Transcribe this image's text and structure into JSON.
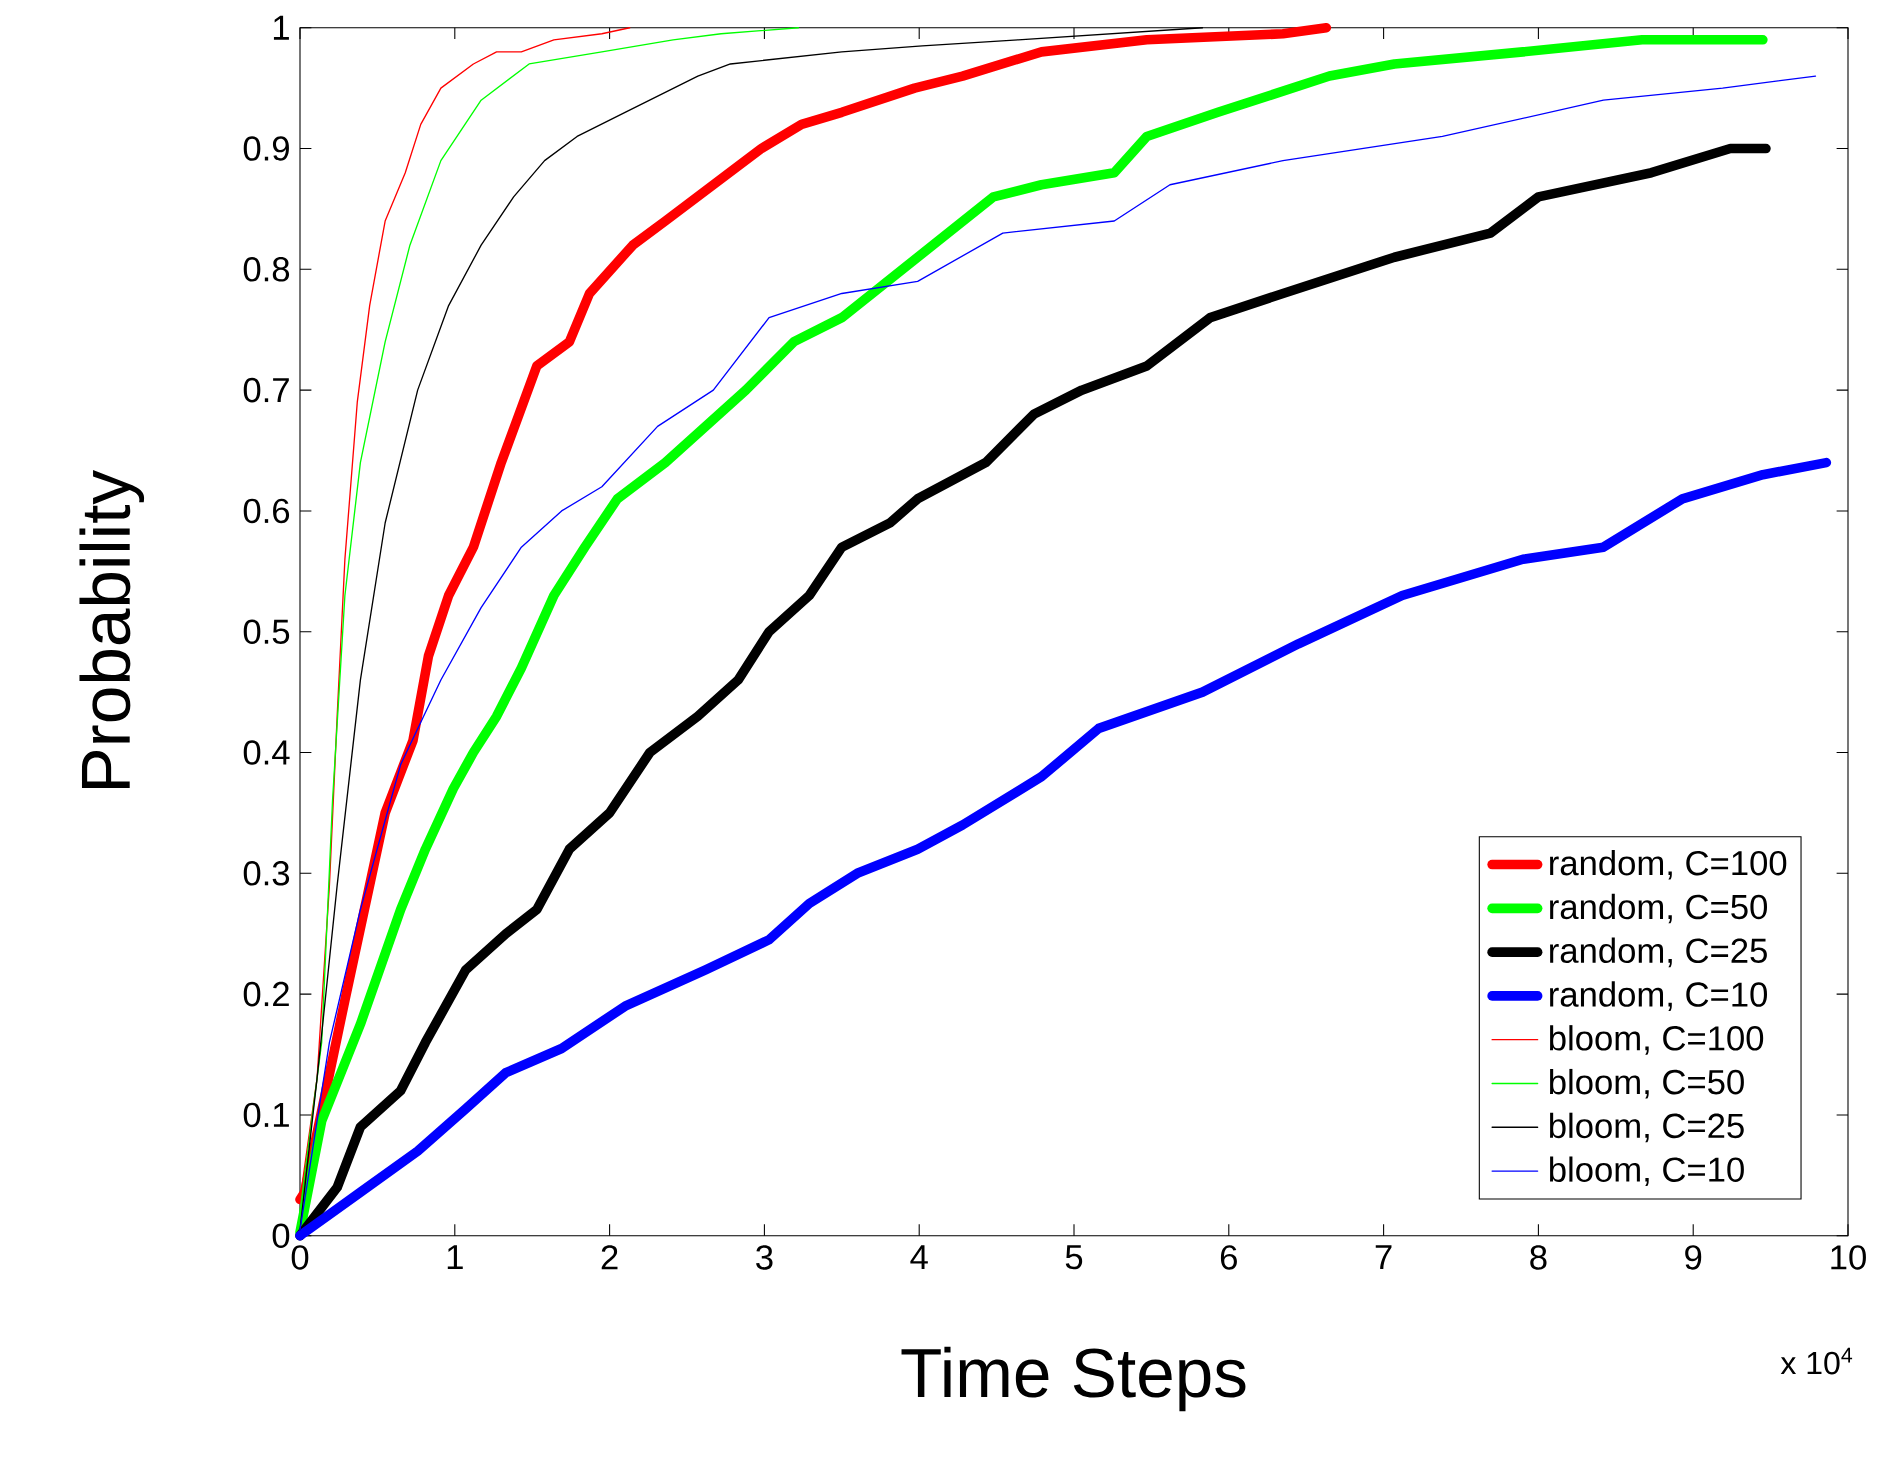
{
  "chart_data": {
    "type": "line",
    "xlabel": "Time Steps",
    "ylabel": "Probability",
    "annotations": [
      "x 10$^{4}$"
    ],
    "xlim": [
      0,
      10
    ],
    "ylim": [
      0,
      1
    ],
    "xticks": [
      0,
      1,
      2,
      3,
      4,
      5,
      6,
      7,
      8,
      9,
      10
    ],
    "yticks": [
      0,
      0.1,
      0.2,
      0.3,
      0.4,
      0.5,
      0.6,
      0.7,
      0.8,
      0.9,
      1
    ],
    "legend": "bottom right",
    "grid": false,
    "marker": "none",
    "line_style": "solid",
    "series": [
      {
        "name": "random, C=100",
        "color": "#ff0000",
        "x": [
          0,
          0.03,
          0.29,
          0.55,
          0.73,
          0.83,
          0.96,
          1.12,
          1.3,
          1.53,
          1.74,
          1.87,
          2.15,
          2.36,
          2.67,
          2.98,
          3.24,
          3.5,
          3.97,
          4.28,
          4.79,
          5.47,
          6.35,
          6.63
        ],
        "values": [
          0.03,
          0.036,
          0.195,
          0.35,
          0.41,
          0.48,
          0.53,
          0.57,
          0.64,
          0.72,
          0.74,
          0.78,
          0.82,
          0.84,
          0.87,
          0.9,
          0.92,
          0.93,
          0.95,
          0.96,
          0.98,
          0.99,
          0.995,
          1.0
        ]
      },
      {
        "name": "random, C=50",
        "color": "#00ff00",
        "x": [
          0,
          0.14,
          0.39,
          0.65,
          0.81,
          0.99,
          1.12,
          1.27,
          1.43,
          1.64,
          1.84,
          2.05,
          2.36,
          2.62,
          2.88,
          3.19,
          3.5,
          3.99,
          4.48,
          4.79,
          5.26,
          5.47,
          5.93,
          6.65,
          7.07,
          7.9,
          8.67,
          9.19,
          9.45
        ],
        "values": [
          0.003,
          0.095,
          0.175,
          0.27,
          0.32,
          0.37,
          0.4,
          0.43,
          0.47,
          0.53,
          0.57,
          0.61,
          0.64,
          0.67,
          0.7,
          0.74,
          0.76,
          0.81,
          0.86,
          0.87,
          0.88,
          0.91,
          0.93,
          0.96,
          0.97,
          0.98,
          0.99,
          0.99,
          0.99
        ]
      },
      {
        "name": "random, C=25",
        "color": "#000000",
        "x": [
          0,
          0.24,
          0.39,
          0.65,
          0.81,
          1.07,
          1.33,
          1.53,
          1.74,
          2.0,
          2.26,
          2.57,
          2.83,
          3.03,
          3.29,
          3.5,
          3.81,
          3.99,
          4.43,
          4.74,
          5.05,
          5.47,
          5.88,
          6.35,
          7.07,
          7.69,
          8.0,
          8.73,
          9.24,
          9.47
        ],
        "values": [
          0,
          0.04,
          0.09,
          0.12,
          0.16,
          0.22,
          0.25,
          0.27,
          0.32,
          0.35,
          0.4,
          0.43,
          0.46,
          0.5,
          0.53,
          0.57,
          0.59,
          0.61,
          0.64,
          0.68,
          0.7,
          0.72,
          0.76,
          0.78,
          0.81,
          0.83,
          0.86,
          0.88,
          0.9,
          0.9
        ]
      },
      {
        "name": "random, C=10",
        "color": "#0000ff",
        "x": [
          0,
          0.39,
          0.76,
          1.07,
          1.33,
          1.69,
          2.1,
          2.62,
          3.03,
          3.29,
          3.6,
          3.99,
          4.28,
          4.79,
          5.16,
          5.83,
          6.45,
          7.12,
          7.9,
          8.42,
          8.93,
          9.45,
          9.86
        ],
        "values": [
          0,
          0.036,
          0.07,
          0.105,
          0.135,
          0.155,
          0.19,
          0.22,
          0.245,
          0.275,
          0.3,
          0.32,
          0.34,
          0.38,
          0.42,
          0.45,
          0.49,
          0.53,
          0.56,
          0.57,
          0.61,
          0.63,
          0.64
        ]
      },
      {
        "name": "bloom, C=100",
        "color": "#ff0000",
        "x": [
          0,
          0.11,
          0.19,
          0.24,
          0.29,
          0.37,
          0.45,
          0.55,
          0.68,
          0.78,
          0.91,
          1.12,
          1.27,
          1.43,
          1.64,
          1.95,
          2.13
        ],
        "values": [
          0.03,
          0.13,
          0.29,
          0.43,
          0.56,
          0.69,
          0.77,
          0.84,
          0.88,
          0.92,
          0.95,
          0.97,
          0.98,
          0.98,
          0.99,
          0.995,
          1.0
        ]
      },
      {
        "name": "bloom, C=50",
        "color": "#00ff00",
        "x": [
          0,
          0.14,
          0.21,
          0.29,
          0.39,
          0.55,
          0.71,
          0.91,
          1.17,
          1.48,
          1.95,
          2.41,
          2.72,
          3.22
        ],
        "values": [
          0.02,
          0.16,
          0.36,
          0.53,
          0.64,
          0.74,
          0.82,
          0.89,
          0.94,
          0.97,
          0.98,
          0.99,
          0.995,
          1.0
        ]
      },
      {
        "name": "bloom, C=25",
        "color": "#000000",
        "x": [
          0,
          0.11,
          0.24,
          0.39,
          0.55,
          0.76,
          0.96,
          1.17,
          1.38,
          1.58,
          1.79,
          2.1,
          2.57,
          2.78,
          3.5,
          4.02,
          4.64,
          5.83
        ],
        "values": [
          0.005,
          0.13,
          0.29,
          0.46,
          0.59,
          0.7,
          0.77,
          0.82,
          0.86,
          0.89,
          0.91,
          0.93,
          0.96,
          0.97,
          0.98,
          0.985,
          0.99,
          1.0
        ]
      },
      {
        "name": "bloom, C=10",
        "color": "#0000ff",
        "x": [
          0,
          0.19,
          0.39,
          0.65,
          0.91,
          1.17,
          1.43,
          1.69,
          1.95,
          2.31,
          2.67,
          3.03,
          3.5,
          3.99,
          4.54,
          5.26,
          5.62,
          6.35,
          7.38,
          8.42,
          9.19,
          9.79
        ],
        "values": [
          0.005,
          0.16,
          0.27,
          0.39,
          0.46,
          0.52,
          0.57,
          0.6,
          0.62,
          0.67,
          0.7,
          0.76,
          0.78,
          0.79,
          0.83,
          0.84,
          0.87,
          0.89,
          0.91,
          0.94,
          0.95,
          0.96
        ]
      }
    ]
  }
}
